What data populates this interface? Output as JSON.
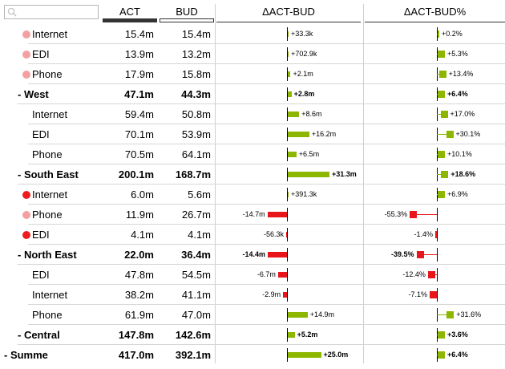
{
  "header": {
    "act_label": "ACT",
    "bud_label": "BUD",
    "delta_label": "ΔACT-BUD",
    "delta_pct_label": "ΔACT-BUD%"
  },
  "colors": {
    "positive": "#8db600",
    "negative": "#e8161a",
    "dot_light": "#f4a0a0",
    "dot_dark": "#ee1c1c"
  },
  "chart_data": {
    "type": "table",
    "columns": [
      "ACT",
      "BUD",
      "ΔACT-BUD",
      "ΔACT-BUD%"
    ],
    "rows": [
      {
        "label": "Internet",
        "level": 1,
        "dot": "light",
        "bold": false,
        "act": "15.4m",
        "bud": "15.4m",
        "delta": 33.3,
        "delta_label": "+33.3k",
        "pct": 0.2,
        "pct_label": "+0.2%"
      },
      {
        "label": "EDI",
        "level": 1,
        "dot": "light",
        "bold": false,
        "act": "13.9m",
        "bud": "13.2m",
        "delta": 702.9,
        "delta_label": "+702.9k",
        "pct": 5.3,
        "pct_label": "+5.3%"
      },
      {
        "label": "Phone",
        "level": 1,
        "dot": "light",
        "bold": false,
        "act": "17.9m",
        "bud": "15.8m",
        "delta": 2100,
        "delta_label": "+2.1m",
        "pct": 13.4,
        "pct_label": "+13.4%"
      },
      {
        "label": "- West",
        "level": 0,
        "dot": "",
        "bold": true,
        "act": "47.1m",
        "bud": "44.3m",
        "delta": 2800,
        "delta_label": "+2.8m",
        "pct": 6.4,
        "pct_label": "+6.4%"
      },
      {
        "label": "Internet",
        "level": 2,
        "dot": "",
        "bold": false,
        "act": "59.4m",
        "bud": "50.8m",
        "delta": 8600,
        "delta_label": "+8.6m",
        "pct": 17.0,
        "pct_label": "+17.0%"
      },
      {
        "label": "EDI",
        "level": 2,
        "dot": "",
        "bold": false,
        "act": "70.1m",
        "bud": "53.9m",
        "delta": 16200,
        "delta_label": "+16.2m",
        "pct": 30.1,
        "pct_label": "+30.1%"
      },
      {
        "label": "Phone",
        "level": 2,
        "dot": "",
        "bold": false,
        "act": "70.5m",
        "bud": "64.1m",
        "delta": 6500,
        "delta_label": "+6.5m",
        "pct": 10.1,
        "pct_label": "+10.1%"
      },
      {
        "label": "- South East",
        "level": 0,
        "dot": "",
        "bold": true,
        "act": "200.1m",
        "bud": "168.7m",
        "delta": 31300,
        "delta_label": "+31.3m",
        "pct": 18.6,
        "pct_label": "+18.6%"
      },
      {
        "label": "Internet",
        "level": 1,
        "dot": "dark",
        "bold": false,
        "act": "6.0m",
        "bud": "5.6m",
        "delta": 391.3,
        "delta_label": "+391.3k",
        "pct": 6.9,
        "pct_label": "+6.9%"
      },
      {
        "label": "Phone",
        "level": 1,
        "dot": "light",
        "bold": false,
        "act": "11.9m",
        "bud": "26.7m",
        "delta": -14700,
        "delta_label": "-14.7m",
        "pct": -55.3,
        "pct_label": "-55.3%"
      },
      {
        "label": "EDI",
        "level": 1,
        "dot": "dark",
        "bold": false,
        "act": "4.1m",
        "bud": "4.1m",
        "delta": -56.3,
        "delta_label": "-56.3k",
        "pct": -1.4,
        "pct_label": "-1.4%"
      },
      {
        "label": "- North East",
        "level": 0,
        "dot": "",
        "bold": true,
        "act": "22.0m",
        "bud": "36.4m",
        "delta": -14400,
        "delta_label": "-14.4m",
        "pct": -39.5,
        "pct_label": "-39.5%"
      },
      {
        "label": "EDI",
        "level": 2,
        "dot": "",
        "bold": false,
        "act": "47.8m",
        "bud": "54.5m",
        "delta": -6700,
        "delta_label": "-6.7m",
        "pct": -12.4,
        "pct_label": "-12.4%"
      },
      {
        "label": "Internet",
        "level": 2,
        "dot": "",
        "bold": false,
        "act": "38.2m",
        "bud": "41.1m",
        "delta": -2900,
        "delta_label": "-2.9m",
        "pct": -7.1,
        "pct_label": "-7.1%"
      },
      {
        "label": "Phone",
        "level": 2,
        "dot": "",
        "bold": false,
        "act": "61.9m",
        "bud": "47.0m",
        "delta": 14900,
        "delta_label": "+14.9m",
        "pct": 31.6,
        "pct_label": "+31.6%"
      },
      {
        "label": "- Central",
        "level": 0,
        "dot": "",
        "bold": true,
        "act": "147.8m",
        "bud": "142.6m",
        "delta": 5200,
        "delta_label": "+5.2m",
        "pct": 3.6,
        "pct_label": "+3.6%"
      },
      {
        "label": "- Summe",
        "level": -1,
        "dot": "",
        "bold": true,
        "act": "417.0m",
        "bud": "392.1m",
        "delta": 25000,
        "delta_label": "+25.0m",
        "pct": 6.4,
        "pct_label": "+6.4%"
      }
    ]
  }
}
